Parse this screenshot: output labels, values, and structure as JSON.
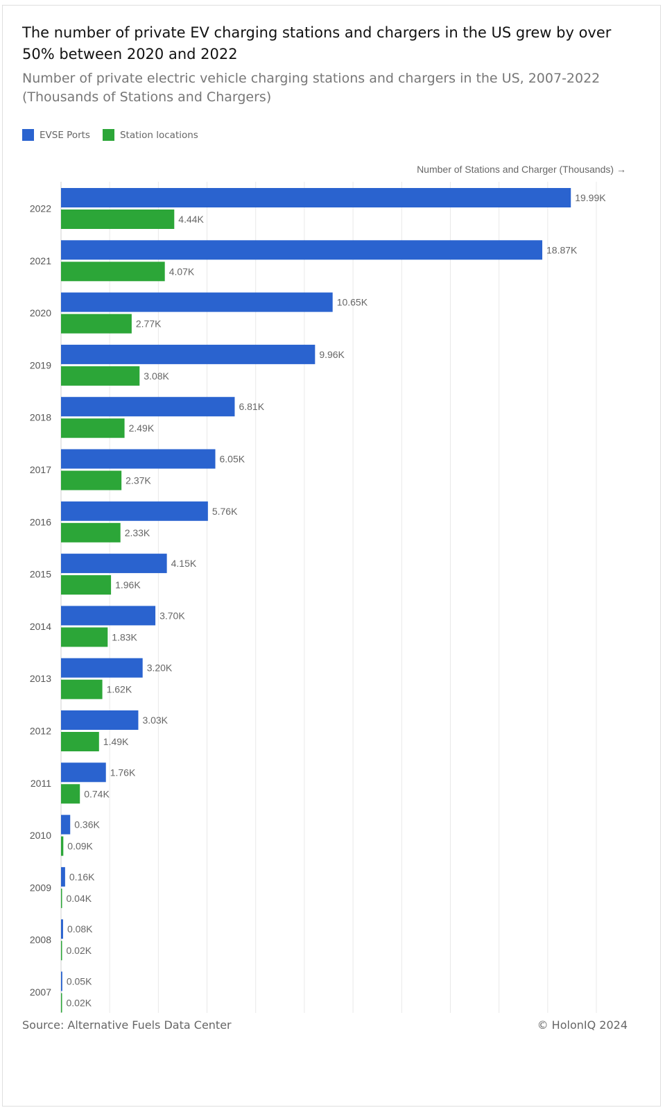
{
  "title": "The number of private EV charging stations and chargers in the US grew by over 50% between 2020 and 2022",
  "subtitle": "Number of private electric vehicle charging stations and chargers in the US, 2007-2022 (Thousands of Stations and Chargers)",
  "axis_title": "Number of Stations and Charger (Thousands) →",
  "source": "Source: Alternative Fuels Data Center",
  "credit": "© HolonIQ 2024",
  "legend": [
    {
      "name": "EVSE Ports",
      "color": "#2a63cf"
    },
    {
      "name": "Station locations",
      "color": "#2ca638"
    }
  ],
  "chart_data": {
    "type": "bar",
    "orientation": "horizontal",
    "title": "The number of private EV charging stations and chargers in the US grew by over 50% between 2020 and 2022",
    "subtitle": "Number of private electric vehicle charging stations and chargers in the US, 2007-2022 (Thousands of Stations and Chargers)",
    "xlabel": "Number of Stations and Charger (Thousands) →",
    "ylabel": "",
    "legend_position": "top-left",
    "grid": true,
    "xlim": [
      0,
      20.99
    ],
    "categories": [
      "2022",
      "2021",
      "2020",
      "2019",
      "2018",
      "2017",
      "2016",
      "2015",
      "2014",
      "2013",
      "2012",
      "2011",
      "2010",
      "2009",
      "2008",
      "2007"
    ],
    "series": [
      {
        "name": "EVSE Ports",
        "color": "#2a63cf",
        "values": [
          19.99,
          18.87,
          10.65,
          9.96,
          6.81,
          6.05,
          5.76,
          4.15,
          3.7,
          3.2,
          3.03,
          1.76,
          0.36,
          0.16,
          0.08,
          0.05
        ],
        "labels": [
          "19.99K",
          "18.87K",
          "10.65K",
          "9.96K",
          "6.81K",
          "6.05K",
          "5.76K",
          "4.15K",
          "3.70K",
          "3.20K",
          "3.03K",
          "1.76K",
          "0.36K",
          "0.16K",
          "0.08K",
          "0.05K"
        ]
      },
      {
        "name": "Station locations",
        "color": "#2ca638",
        "values": [
          4.44,
          4.07,
          2.77,
          3.08,
          2.49,
          2.37,
          2.33,
          1.96,
          1.83,
          1.62,
          1.49,
          0.74,
          0.09,
          0.04,
          0.02,
          0.02
        ],
        "labels": [
          "4.44K",
          "4.07K",
          "2.77K",
          "3.08K",
          "2.49K",
          "2.37K",
          "2.33K",
          "1.96K",
          "1.83K",
          "1.62K",
          "1.49K",
          "0.74K",
          "0.09K",
          "0.04K",
          "0.02K",
          "0.02K"
        ]
      }
    ]
  }
}
